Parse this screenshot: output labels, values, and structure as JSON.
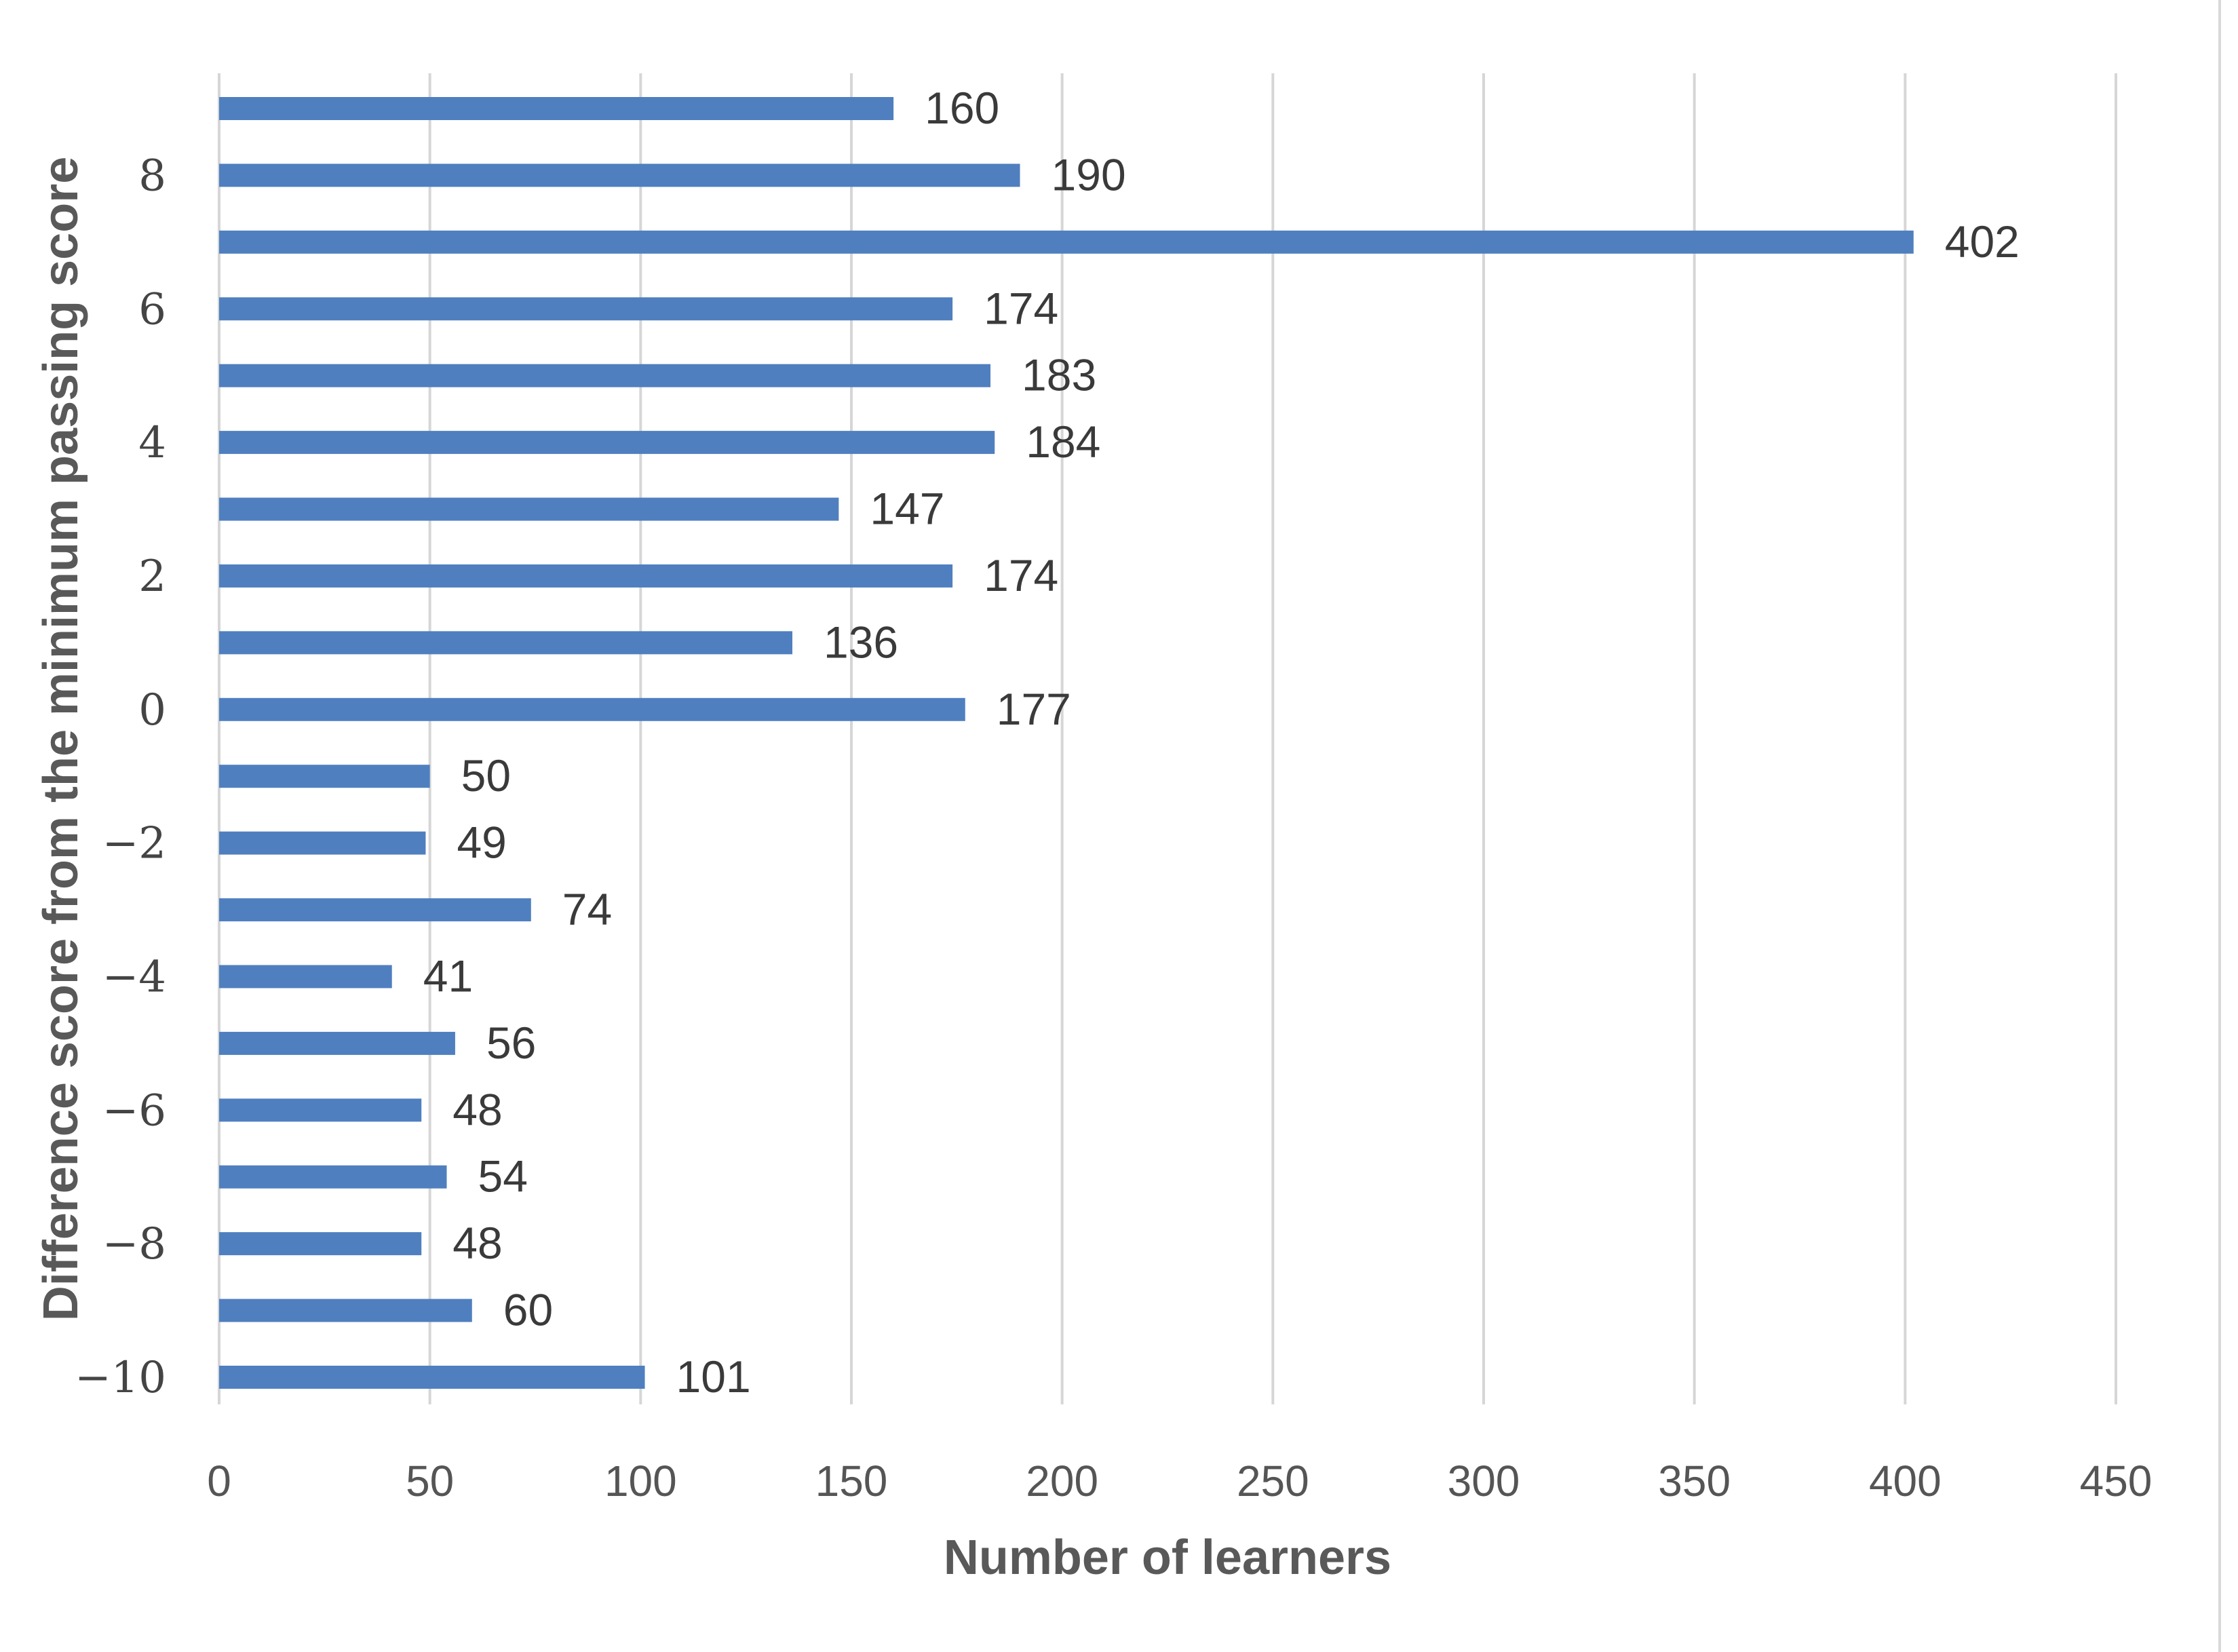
{
  "chart_data": {
    "type": "bar",
    "orientation": "horizontal",
    "title": "",
    "xlabel": "Number of learners",
    "ylabel": "Difference score from the minimum passing score",
    "xlim": [
      0,
      450
    ],
    "x_ticks": [
      0,
      50,
      100,
      150,
      200,
      250,
      300,
      350,
      400,
      450
    ],
    "grid": "vertical",
    "legend": "none",
    "bar_color": "#4f7fbf",
    "categories": [
      -10,
      -9,
      -8,
      -7,
      -6,
      -5,
      -4,
      -3,
      -2,
      -1,
      0,
      1,
      2,
      3,
      4,
      5,
      6,
      7,
      8,
      9
    ],
    "category_labels_shown": {
      "-10": "−10",
      "-8": "−8",
      "-6": "−6",
      "-4": "−4",
      "-2": "−2",
      "0": "0",
      "2": "2",
      "4": "4",
      "6": "6",
      "8": "8"
    },
    "values": [
      101,
      60,
      48,
      54,
      48,
      56,
      41,
      74,
      49,
      50,
      177,
      136,
      174,
      147,
      184,
      183,
      174,
      402,
      190,
      160
    ]
  }
}
